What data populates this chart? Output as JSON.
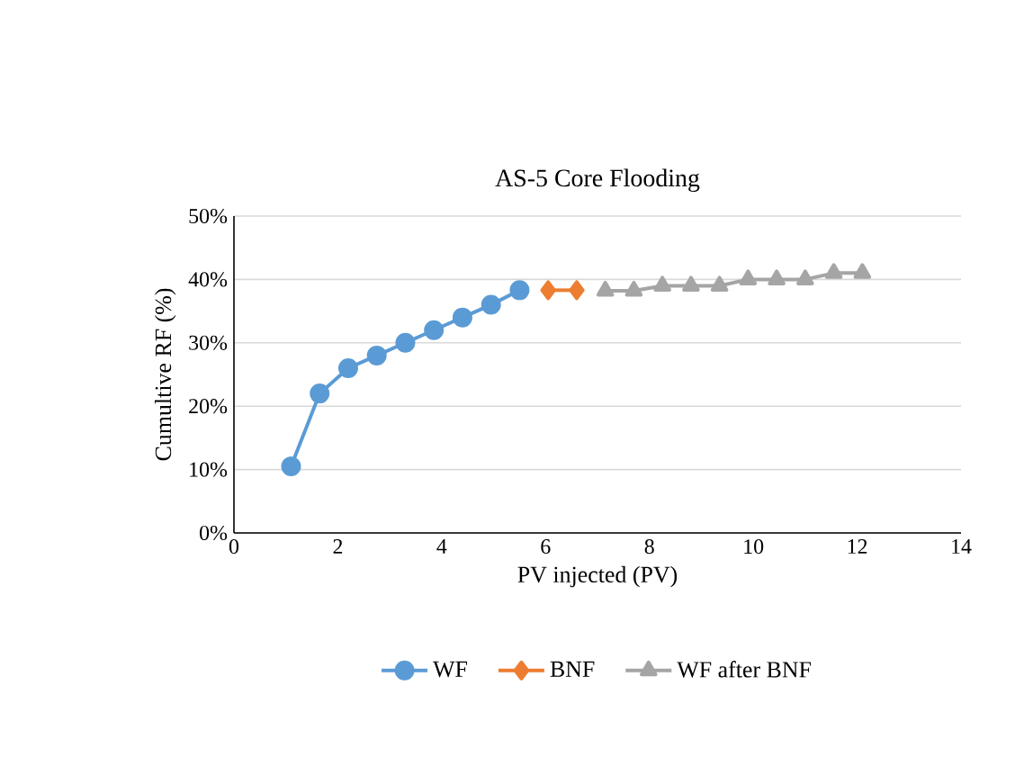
{
  "chart_data": {
    "type": "line",
    "title": "AS-5 Core Flooding",
    "xlabel": "PV injected (PV)",
    "ylabel": "Cumultive RF (%)",
    "xlim": [
      0,
      14
    ],
    "xticks": [
      0,
      2,
      4,
      6,
      8,
      10,
      12,
      14
    ],
    "ylim": [
      0,
      50
    ],
    "yticks": [
      {
        "value": 0,
        "label": "0%"
      },
      {
        "value": 10,
        "label": "10%"
      },
      {
        "value": 20,
        "label": "20%"
      },
      {
        "value": 30,
        "label": "30%"
      },
      {
        "value": 40,
        "label": "40%"
      },
      {
        "value": 50,
        "label": "50%"
      }
    ],
    "grid": "y",
    "legend": "bottom",
    "series": [
      {
        "name": "WF",
        "color": "#5b9bd5",
        "marker": "circle",
        "x": [
          1.1,
          1.65,
          2.2,
          2.75,
          3.3,
          3.85,
          4.4,
          4.95,
          5.5
        ],
        "values": [
          10.5,
          22,
          26,
          28,
          30,
          32,
          34,
          36,
          38.3
        ]
      },
      {
        "name": "BNF",
        "color": "#ed7d31",
        "marker": "diamond",
        "x": [
          6.05,
          6.6
        ],
        "values": [
          38.3,
          38.3
        ]
      },
      {
        "name": "WF after BNF",
        "color": "#a5a5a5",
        "marker": "triangle",
        "x": [
          7.15,
          7.7,
          8.25,
          8.8,
          9.35,
          9.9,
          10.45,
          11.0,
          11.55,
          12.1
        ],
        "values": [
          38.2,
          38.2,
          39,
          39,
          39,
          40,
          40,
          40,
          41,
          41
        ]
      }
    ]
  }
}
